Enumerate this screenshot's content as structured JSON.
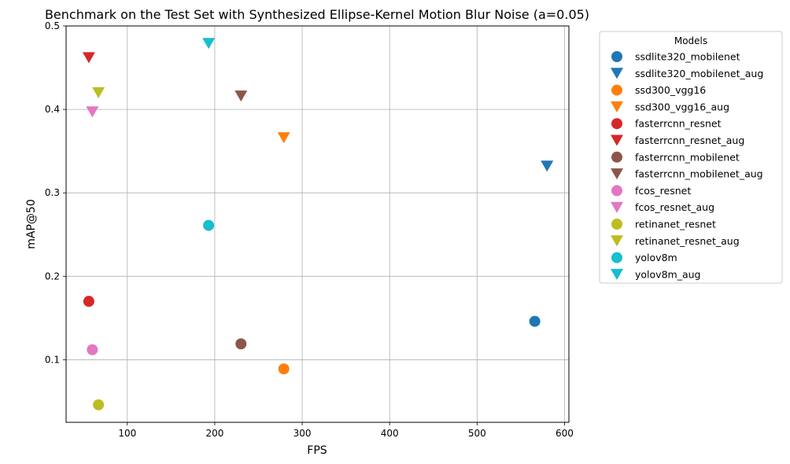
{
  "chart_data": {
    "type": "scatter",
    "title": "Benchmark on the Test Set with Synthesized Ellipse-Kernel Motion Blur Noise  (a=0.05)",
    "xlabel": "FPS",
    "ylabel": "mAP@50",
    "xlim": [
      30,
      605
    ],
    "ylim": [
      0.025,
      0.5
    ],
    "xticks": [
      100,
      200,
      300,
      400,
      500,
      600
    ],
    "yticks": [
      0.1,
      0.2,
      0.3,
      0.4,
      0.5
    ],
    "xtick_labels": [
      "100",
      "200",
      "300",
      "400",
      "500",
      "600"
    ],
    "ytick_labels": [
      "0.1",
      "0.2",
      "0.3",
      "0.4",
      "0.5"
    ],
    "grid": true,
    "legend": {
      "title": "Models",
      "placement": "outside-right"
    },
    "series": [
      {
        "name": "ssdlite320_mobilenet",
        "marker": "circle",
        "color": "#1f77b4",
        "x": [
          566
        ],
        "y": [
          0.146
        ]
      },
      {
        "name": "ssdlite320_mobilenet_aug",
        "marker": "triangle-down",
        "color": "#1f77b4",
        "x": [
          580
        ],
        "y": [
          0.332
        ]
      },
      {
        "name": "ssd300_vgg16",
        "marker": "circle",
        "color": "#ff7f0e",
        "x": [
          279
        ],
        "y": [
          0.089
        ]
      },
      {
        "name": "ssd300_vgg16_aug",
        "marker": "triangle-down",
        "color": "#ff7f0e",
        "x": [
          279
        ],
        "y": [
          0.366
        ]
      },
      {
        "name": "fasterrcnn_resnet",
        "marker": "circle",
        "color": "#d62728",
        "x": [
          56
        ],
        "y": [
          0.17
        ]
      },
      {
        "name": "fasterrcnn_resnet_aug",
        "marker": "triangle-down",
        "color": "#d62728",
        "x": [
          56
        ],
        "y": [
          0.462
        ]
      },
      {
        "name": "fasterrcnn_mobilenet",
        "marker": "circle",
        "color": "#8c564b",
        "x": [
          230
        ],
        "y": [
          0.119
        ]
      },
      {
        "name": "fasterrcnn_mobilenet_aug",
        "marker": "triangle-down",
        "color": "#8c564b",
        "x": [
          230
        ],
        "y": [
          0.416
        ]
      },
      {
        "name": "fcos_resnet",
        "marker": "circle",
        "color": "#e377c2",
        "x": [
          60
        ],
        "y": [
          0.112
        ]
      },
      {
        "name": "fcos_resnet_aug",
        "marker": "triangle-down",
        "color": "#e377c2",
        "x": [
          60
        ],
        "y": [
          0.397
        ]
      },
      {
        "name": "retinanet_resnet",
        "marker": "circle",
        "color": "#bcbd22",
        "x": [
          67
        ],
        "y": [
          0.046
        ]
      },
      {
        "name": "retinanet_resnet_aug",
        "marker": "triangle-down",
        "color": "#bcbd22",
        "x": [
          67
        ],
        "y": [
          0.42
        ]
      },
      {
        "name": "yolov8m",
        "marker": "circle",
        "color": "#17becf",
        "x": [
          193
        ],
        "y": [
          0.261
        ]
      },
      {
        "name": "yolov8m_aug",
        "marker": "triangle-down",
        "color": "#17becf",
        "x": [
          193
        ],
        "y": [
          0.479
        ]
      }
    ]
  }
}
